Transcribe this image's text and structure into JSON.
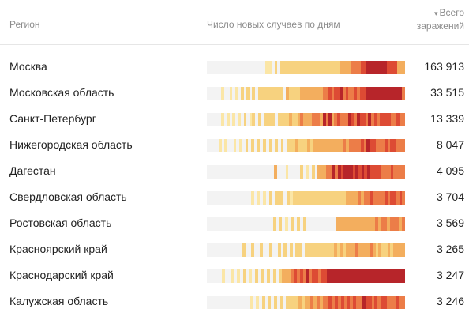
{
  "header": {
    "region_label": "Регион",
    "daily_label": "Число новых случаев по дням",
    "total_line1": "Всего",
    "total_line2": "заражений",
    "sort_icon": "triangle-down"
  },
  "colors": {
    "levels": [
      "#f3f3f3",
      "#fbe6a6",
      "#f7d27f",
      "#f3ae5e",
      "#ec7d48",
      "#dd4b34",
      "#b7252a"
    ]
  },
  "rows": [
    {
      "region": "Москва",
      "total": "163 913",
      "days": "0000000000000000000000111020222222222222222222222223333444455666666665555333"
    },
    {
      "region": "Московская область",
      "total": "33 515",
      "days": "0000010010102020202222222220322223333333344545564544545566666666666664"
    },
    {
      "region": "Санкт-Петербург",
      "total": "13 339",
      "days": "0000010101010201202022220222232234333444364634544465465546454555544544"
    },
    {
      "region": "Нижегородская область",
      "total": "8 047",
      "days": "0000101001010202020202020202223222323333333333434444546554445455444"
    },
    {
      "region": "Дагестан",
      "total": "4 095",
      "days": "00000000000000000000000300010000201020333446465666565656555544454444"
    },
    {
      "region": "Свердловская область",
      "total": "3 704",
      "days": "0000000000000001010102022202122222222222222222233334344544445455454"
    },
    {
      "region": "Ростовская область",
      "total": "3 569",
      "days": "000000000000000000000020201020202000000000033333333333334344344434"
    },
    {
      "region": "Красноярский край",
      "total": "3 265",
      "days": "0000000000002002002002002020202202222222222323233343333432322323333"
    },
    {
      "region": "Краснодарский край",
      "total": "3 247",
      "days": "000001001010201020202020233345454645545566666666666666666666666666"
    },
    {
      "region": "Калужская область",
      "total": "3 246",
      "days": "00000000000000101020202020222232334343445454545454465545455444544"
    }
  ]
}
